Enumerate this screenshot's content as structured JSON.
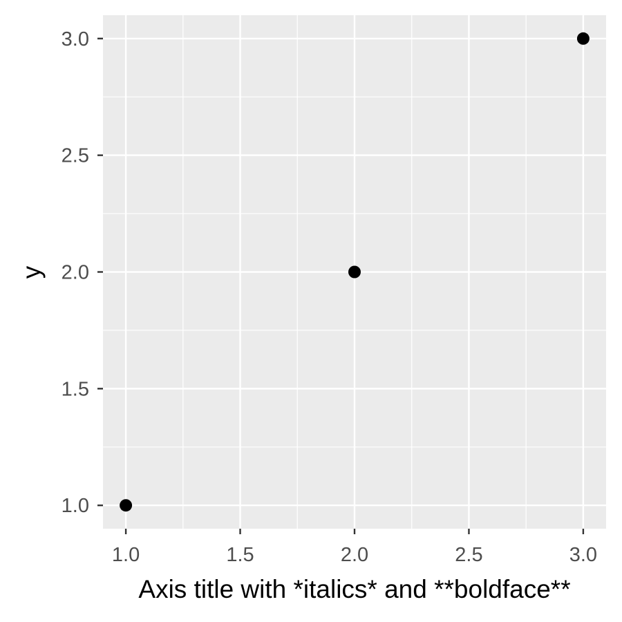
{
  "chart_data": {
    "type": "scatter",
    "title": "",
    "xlabel": "Axis title with *italics* and **boldface**",
    "ylabel": "y",
    "xlim": [
      0.9,
      3.1
    ],
    "ylim": [
      0.9,
      3.1
    ],
    "x_ticks": [
      1.0,
      1.5,
      2.0,
      2.5,
      3.0
    ],
    "x_tick_labels": [
      "1.0",
      "1.5",
      "2.0",
      "2.5",
      "3.0"
    ],
    "y_ticks": [
      1.0,
      1.5,
      2.0,
      2.5,
      3.0
    ],
    "y_tick_labels": [
      "1.0",
      "1.5",
      "2.0",
      "2.5",
      "3.0"
    ],
    "grid": true,
    "legend": "none",
    "series": [
      {
        "points": [
          {
            "x": 1,
            "y": 1
          },
          {
            "x": 2,
            "y": 2
          },
          {
            "x": 3,
            "y": 3
          }
        ]
      }
    ],
    "colors": {
      "panel": "#EBEBEB",
      "grid": "#FFFFFF",
      "point": "#000000",
      "tick_label": "#4D4D4D"
    }
  }
}
